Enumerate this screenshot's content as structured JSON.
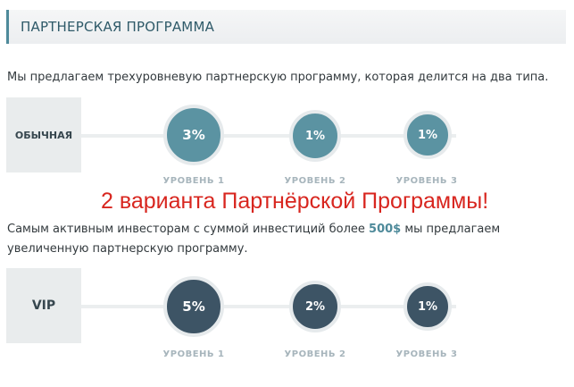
{
  "header": {
    "title": "ПАРТНЕРСКАЯ ПРОГРАММА"
  },
  "intro_text": "Мы предлагаем трехуровневую партнерскую программу, которая делится на два типа.",
  "overlay_text": "2 варианта Партнёрской Программы!",
  "vip_text": {
    "part1": "Самым активным инвесторам с суммой инвестиций более ",
    "amount": "500$",
    "part2": " мы предлагаем",
    "line2": "увеличенную партнерскую программу."
  },
  "plans": [
    {
      "type_label": "ОБЫЧНАЯ",
      "color": "#5b93a2",
      "levels": [
        {
          "percent": "3%",
          "label": "УРОВЕНЬ 1"
        },
        {
          "percent": "1%",
          "label": "УРОВЕНЬ 2"
        },
        {
          "percent": "1%",
          "label": "УРОВЕНЬ 3"
        }
      ]
    },
    {
      "type_label": "VIP",
      "color": "#3d5465",
      "levels": [
        {
          "percent": "5%",
          "label": "УРОВЕНЬ 1"
        },
        {
          "percent": "2%",
          "label": "УРОВЕНЬ 2"
        },
        {
          "percent": "1%",
          "label": "УРОВЕНЬ 3"
        }
      ]
    }
  ]
}
